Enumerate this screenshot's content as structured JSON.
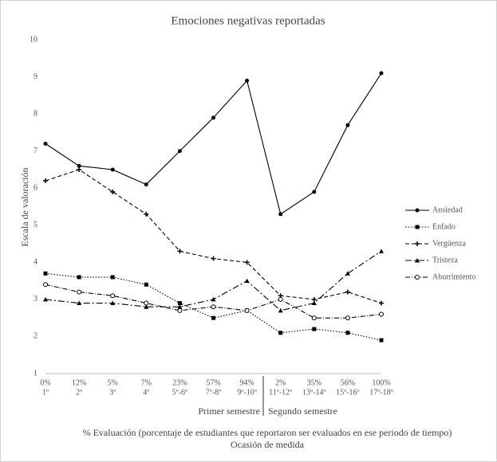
{
  "chart_data": {
    "type": "line",
    "title": "Emociones negativas reportadas",
    "y_label": "Escala de valoración",
    "x_label": "% Evaluación (porcentaje de estudiantes que reportaron ser evaluados en ese periodo de tiempo)",
    "x_label_2": "Ocasión de medida",
    "groups": [
      "Primer semestre",
      "Segundo semestre"
    ],
    "categories": [
      [
        "0%",
        "1º"
      ],
      [
        "12%",
        "2º"
      ],
      [
        "5%",
        "3º"
      ],
      [
        "7%",
        "4º"
      ],
      [
        "23%",
        "5º-6º"
      ],
      [
        "57%",
        "7º-8º"
      ],
      [
        "94%",
        "9º-10º"
      ],
      [
        "2%",
        "11º-12º"
      ],
      [
        "35%",
        "13º-14º"
      ],
      [
        "56%",
        "15º-16º"
      ],
      [
        "100%",
        "17º-18º"
      ]
    ],
    "ylim": [
      1,
      10
    ],
    "yticks": [
      1,
      2,
      3,
      4,
      5,
      6,
      7,
      8,
      9,
      10
    ],
    "legend": "right",
    "series": [
      {
        "name": "Ansiedad",
        "color": "#000000",
        "dash": "none",
        "marker": "circle",
        "values": [
          7.2,
          6.6,
          6.5,
          6.1,
          7.0,
          7.9,
          8.9,
          5.3,
          5.9,
          7.7,
          9.1
        ]
      },
      {
        "name": "Enfado",
        "color": "#000000",
        "dash": "1.5 2",
        "marker": "square",
        "values": [
          3.7,
          3.6,
          3.6,
          3.4,
          2.9,
          2.5,
          2.7,
          2.1,
          2.2,
          2.1,
          1.9
        ]
      },
      {
        "name": "Vergüenza",
        "color": "#000000",
        "dash": "5 3",
        "marker": "star",
        "values": [
          6.2,
          6.5,
          5.9,
          5.3,
          4.3,
          4.1,
          4.0,
          3.1,
          3.0,
          3.2,
          2.9
        ]
      },
      {
        "name": "Tristeza",
        "color": "#000000",
        "dash": "8 3 2 3",
        "marker": "triangle",
        "values": [
          3.0,
          2.9,
          2.9,
          2.8,
          2.8,
          3.0,
          3.5,
          2.7,
          2.9,
          3.7,
          4.3
        ]
      },
      {
        "name": "Aburrimiento",
        "color": "#000000",
        "dash": "6 2 1 2",
        "marker": "open-circle",
        "values": [
          3.4,
          3.2,
          3.1,
          2.9,
          2.7,
          2.8,
          2.7,
          3.0,
          2.5,
          2.5,
          2.6
        ]
      }
    ]
  }
}
